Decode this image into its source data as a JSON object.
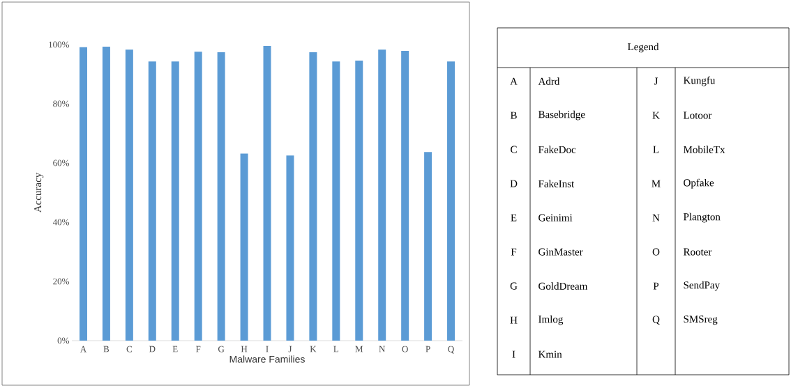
{
  "chart_data": [
    {
      "type": "bar",
      "xlabel": "Malware Families",
      "ylabel": "Accuracy",
      "categories": [
        "A",
        "B",
        "C",
        "D",
        "E",
        "F",
        "G",
        "H",
        "I",
        "J",
        "K",
        "L",
        "M",
        "N",
        "O",
        "P",
        "Q"
      ],
      "values": [
        99.1,
        99.3,
        98.3,
        94.3,
        94.3,
        97.6,
        97.4,
        63.2,
        99.5,
        62.5,
        97.4,
        94.3,
        94.6,
        98.3,
        97.9,
        63.7,
        94.3
      ],
      "color": "#5b9bd5",
      "ylim": [
        0,
        100
      ],
      "yticks": [
        {
          "value": 0,
          "label": "0%"
        },
        {
          "value": 20,
          "label": "20%"
        },
        {
          "value": 40,
          "label": "40%"
        },
        {
          "value": 60,
          "label": "60%"
        },
        {
          "value": 80,
          "label": "80%"
        },
        {
          "value": 100,
          "label": "100%"
        }
      ]
    },
    {
      "type": "other",
      "title": "Legend",
      "annotations": [
        "A",
        "Adrd",
        "B",
        "Basebridge",
        "C",
        "FakeDoc",
        "D",
        "FakeInst",
        "E",
        "Geinimi",
        "F",
        "GinMaster",
        "G",
        "GoldDream",
        "H",
        "Imlog",
        "I",
        "Kmin",
        "J",
        "Kungfu",
        "K",
        "Lotoor",
        "L",
        "MobileTx",
        "M",
        "Opfake",
        "N",
        "Plangton",
        "O",
        "Rooter",
        "P",
        "SendPay",
        "Q",
        "SMSreg"
      ]
    }
  ]
}
